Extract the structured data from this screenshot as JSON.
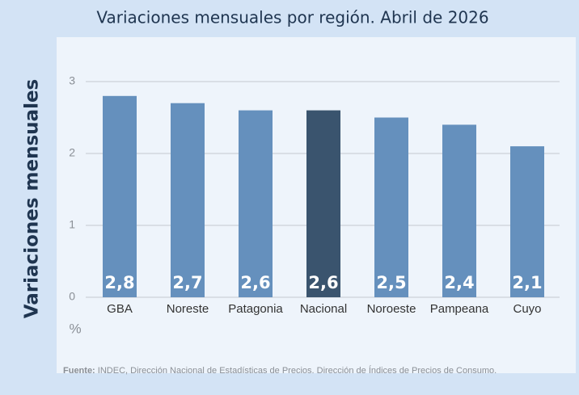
{
  "chart_data": {
    "type": "bar",
    "title": "Variaciones mensuales por región. Abril de 2026",
    "ylabel": "Variaciones mensuales",
    "y_unit": "%",
    "categories": [
      "GBA",
      "Noreste",
      "Patagonia",
      "Nacional",
      "Noroeste",
      "Pampeana",
      "Cuyo"
    ],
    "values": [
      2.8,
      2.7,
      2.6,
      2.6,
      2.5,
      2.4,
      2.1
    ],
    "value_labels": [
      "2,8",
      "2,7",
      "2,6",
      "2,6",
      "2,5",
      "2,4",
      "2,1"
    ],
    "colors": [
      "#6590bd",
      "#6590bd",
      "#6590bd",
      "#3a546e",
      "#6590bd",
      "#6590bd",
      "#6590bd"
    ],
    "ylim": [
      0,
      3
    ],
    "yticks": [
      0,
      1,
      2,
      3
    ],
    "grid": true,
    "source_label": "Fuente:",
    "source": "INDEC, Dirección Nacional de Estadísticas de Precios. Dirección de Índices de Precios de Consumo."
  }
}
